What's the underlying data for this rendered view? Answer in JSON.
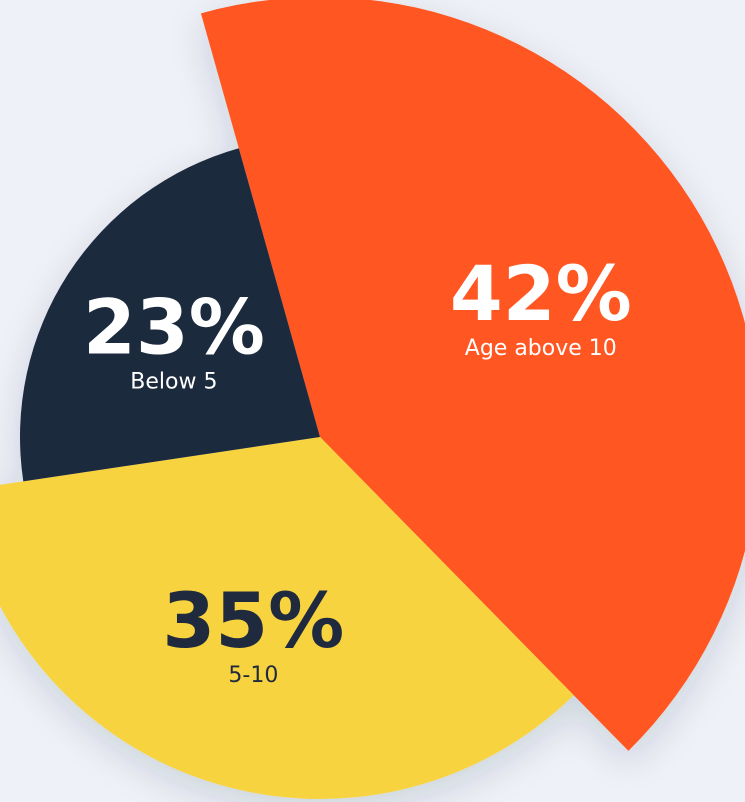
{
  "chart_data": {
    "type": "pie",
    "categories": [
      "Age above 10",
      "5-10",
      "Below 5"
    ],
    "values": [
      42,
      35,
      23
    ],
    "value_labels": [
      "42%",
      "35%",
      "23%"
    ],
    "colors": [
      "#ff5722",
      "#f8d340",
      "#1f2a3e"
    ]
  }
}
